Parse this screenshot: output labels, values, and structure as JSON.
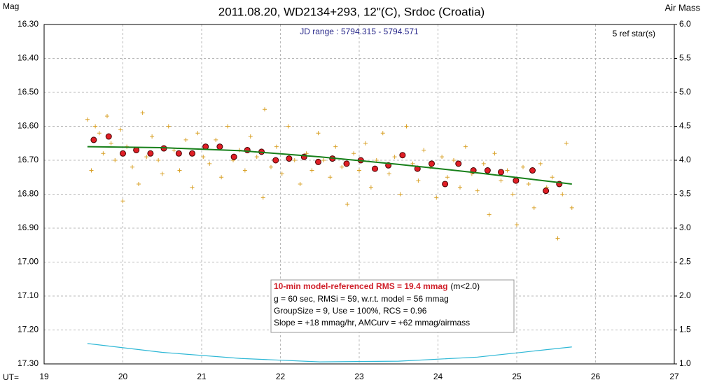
{
  "chart_data": {
    "type": "scatter",
    "title": "2011.08.20, WD2134+293, 12\"(C), Srdoc (Croatia)",
    "y_label": "Mag",
    "y2_label": "Air Mass",
    "x_label": "UT=",
    "subtitle": "JD range : 5794.315 - 5794.571",
    "ref_note": "5 ref star(s)",
    "annotation": {
      "rms_line": "10-min model-referenced RMS = 19.4 mmag",
      "rms_note": "(m<2.0)",
      "lines": [
        "g = 60 sec, RMSi = 59, w.r.t. model = 56 mmag",
        "GroupSize = 9, Use = 100%, RCS = 0.96",
        "Slope = +18 mmag/hr, AMCurv = +62 mmag/airmass"
      ]
    },
    "xlim": [
      19,
      27
    ],
    "xticks": [
      19,
      20,
      21,
      22,
      23,
      24,
      25,
      26,
      27
    ],
    "ylim": [
      16.3,
      17.3
    ],
    "y_inverted": true,
    "yticks": [
      {
        "value": 16.3,
        "label": "16.30"
      },
      {
        "value": 16.4,
        "label": "16.40"
      },
      {
        "value": 16.5,
        "label": "16.50"
      },
      {
        "value": 16.6,
        "label": "16.60"
      },
      {
        "value": 16.7,
        "label": "16.70"
      },
      {
        "value": 16.8,
        "label": "16.80"
      },
      {
        "value": 16.9,
        "label": "16.90"
      },
      {
        "value": 17.0,
        "label": "17.00"
      },
      {
        "value": 17.1,
        "label": "17.10"
      },
      {
        "value": 17.2,
        "label": "17.20"
      },
      {
        "value": 17.3,
        "label": "17.30"
      }
    ],
    "y2lim": [
      1,
      6
    ],
    "y2ticks": [
      {
        "value": 6,
        "label": "6.0"
      },
      {
        "value": 5.5,
        "label": "5.5"
      },
      {
        "value": 5,
        "label": "5.0"
      },
      {
        "value": 4.5,
        "label": "4.5"
      },
      {
        "value": 4,
        "label": "4.0"
      },
      {
        "value": 3.5,
        "label": "3.5"
      },
      {
        "value": 3,
        "label": "3.0"
      },
      {
        "value": 2.5,
        "label": "2.5"
      },
      {
        "value": 2,
        "label": "2.0"
      },
      {
        "value": 1.5,
        "label": "1.5"
      },
      {
        "value": 1,
        "label": "1.0"
      }
    ],
    "grid": true,
    "series": [
      {
        "marker": "plus",
        "color": "#d9a22a",
        "x": [
          19.55,
          19.6,
          19.65,
          19.7,
          19.75,
          19.8,
          19.85,
          19.9,
          19.97,
          20.0,
          20.05,
          20.12,
          20.2,
          20.25,
          20.3,
          20.37,
          20.45,
          20.5,
          20.58,
          20.65,
          20.72,
          20.8,
          20.88,
          20.95,
          21.02,
          21.1,
          21.18,
          21.25,
          21.33,
          21.4,
          21.48,
          21.55,
          21.62,
          21.7,
          21.78,
          21.8,
          21.88,
          21.95,
          22.02,
          22.1,
          22.18,
          22.25,
          22.33,
          22.4,
          22.48,
          22.55,
          22.63,
          22.7,
          22.78,
          22.85,
          22.93,
          23.0,
          23.08,
          23.15,
          23.22,
          23.3,
          23.38,
          23.45,
          23.52,
          23.6,
          23.68,
          23.75,
          23.82,
          23.9,
          23.98,
          24.05,
          24.12,
          24.2,
          24.28,
          24.35,
          24.43,
          24.5,
          24.58,
          24.65,
          24.72,
          24.8,
          24.88,
          24.95,
          25.0,
          25.08,
          25.15,
          25.22,
          25.3,
          25.38,
          25.45,
          25.52,
          25.58,
          25.63,
          25.7
        ],
        "values": [
          16.58,
          16.73,
          16.6,
          16.62,
          16.68,
          16.57,
          16.65,
          16.7,
          16.61,
          16.82,
          16.66,
          16.72,
          16.77,
          16.56,
          16.69,
          16.63,
          16.7,
          16.74,
          16.6,
          16.67,
          16.73,
          16.64,
          16.78,
          16.62,
          16.69,
          16.71,
          16.64,
          16.75,
          16.6,
          16.7,
          16.67,
          16.73,
          16.63,
          16.69,
          16.81,
          16.55,
          16.72,
          16.66,
          16.74,
          16.6,
          16.7,
          16.77,
          16.68,
          16.73,
          16.62,
          16.7,
          16.75,
          16.66,
          16.72,
          16.83,
          16.68,
          16.73,
          16.65,
          16.78,
          16.7,
          16.62,
          16.74,
          16.69,
          16.8,
          16.6,
          16.71,
          16.76,
          16.67,
          16.72,
          16.81,
          16.69,
          16.75,
          16.7,
          16.78,
          16.66,
          16.74,
          16.79,
          16.71,
          16.86,
          16.68,
          16.76,
          16.73,
          16.8,
          16.89,
          16.72,
          16.77,
          16.84,
          16.71,
          16.78,
          16.75,
          16.93,
          16.8,
          16.65,
          16.84
        ]
      },
      {
        "marker": "circle",
        "color": "#e01e26",
        "x": [
          19.63,
          19.82,
          20.0,
          20.17,
          20.35,
          20.52,
          20.71,
          20.88,
          21.05,
          21.23,
          21.41,
          21.58,
          21.76,
          21.94,
          22.11,
          22.3,
          22.48,
          22.66,
          22.84,
          23.02,
          23.2,
          23.37,
          23.55,
          23.74,
          23.92,
          24.09,
          24.26,
          24.45,
          24.63,
          24.8,
          24.99,
          25.2,
          25.37,
          25.54
        ],
        "values": [
          16.64,
          16.63,
          16.68,
          16.67,
          16.68,
          16.665,
          16.68,
          16.68,
          16.66,
          16.66,
          16.69,
          16.67,
          16.675,
          16.7,
          16.695,
          16.69,
          16.705,
          16.695,
          16.71,
          16.7,
          16.725,
          16.715,
          16.685,
          16.725,
          16.71,
          16.77,
          16.71,
          16.73,
          16.73,
          16.735,
          16.76,
          16.73,
          16.79,
          16.77
        ]
      },
      {
        "marker": "line",
        "color": "#17801a",
        "x": [
          19.55,
          20.5,
          21.5,
          22.5,
          23.5,
          24.5,
          25.7
        ],
        "values": [
          16.66,
          16.663,
          16.672,
          16.69,
          16.712,
          16.737,
          16.77
        ]
      },
      {
        "marker": "line",
        "color": "#2fb8d6",
        "axis": "y2",
        "x": [
          19.55,
          20.5,
          21.5,
          22.5,
          23.5,
          24.5,
          25.7
        ],
        "values": [
          1.3,
          1.17,
          1.08,
          1.03,
          1.04,
          1.1,
          1.25
        ]
      }
    ]
  }
}
